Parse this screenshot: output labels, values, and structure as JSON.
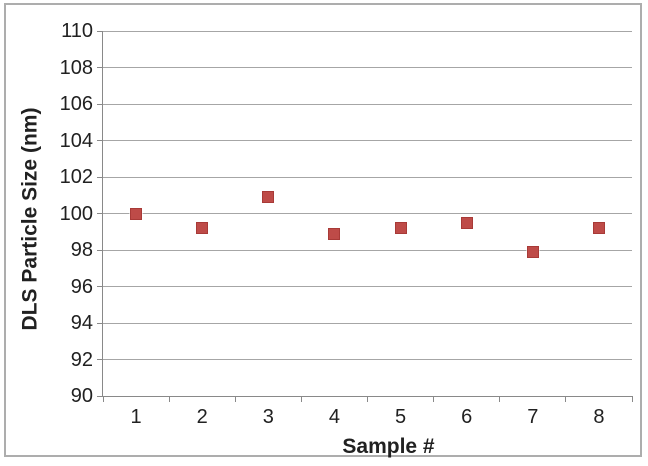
{
  "chart_data": {
    "type": "scatter",
    "title": "",
    "xlabel": "Sample #",
    "ylabel": "DLS Particle Size (nm)",
    "x": [
      "1",
      "2",
      "3",
      "4",
      "5",
      "6",
      "7",
      "8"
    ],
    "series": [
      {
        "name": "DLS Particle Size",
        "values": [
          100.0,
          99.2,
          100.9,
          98.9,
          99.2,
          99.5,
          97.9,
          99.2
        ]
      }
    ],
    "ylim": [
      90,
      110
    ],
    "yticks": [
      90,
      92,
      94,
      96,
      98,
      100,
      102,
      104,
      106,
      108,
      110
    ],
    "grid": true,
    "legend_position": "none",
    "marker": {
      "shape": "square",
      "size": 12,
      "fill": "#BE4B48",
      "border": "#A83A37"
    },
    "colors": {
      "gridline": "#A6A6A6",
      "axis": "#898989",
      "text": "#212121",
      "frame_border": "#ADADAD",
      "background": "#FFFFFF"
    }
  }
}
